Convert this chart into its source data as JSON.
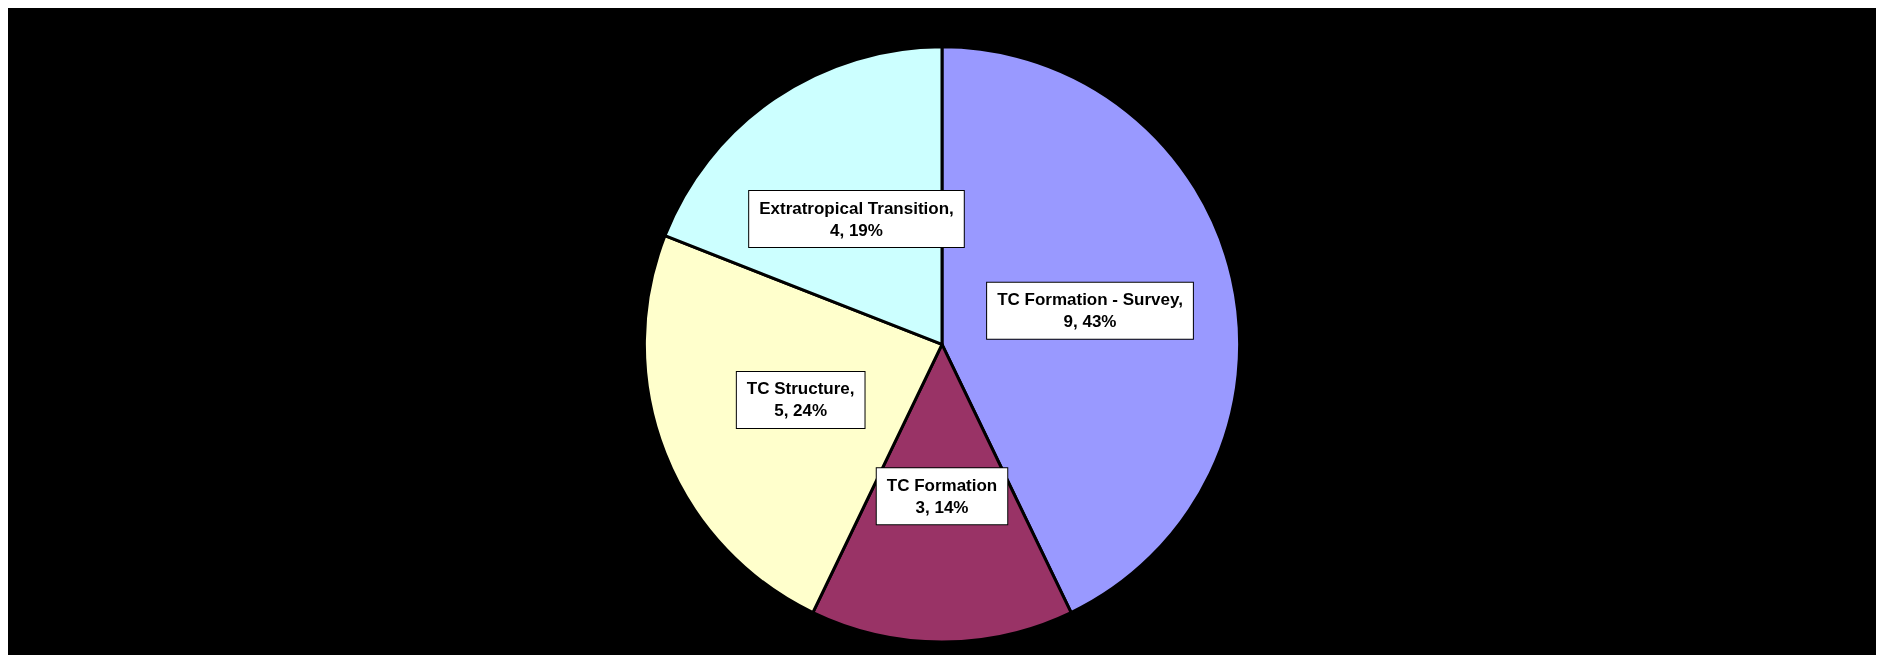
{
  "chart_data": {
    "type": "pie",
    "categories": [
      "TC Formation - Survey",
      "TC Formation",
      "TC Structure",
      "Extratropical Transition"
    ],
    "values": [
      9,
      3,
      5,
      4
    ],
    "colors": [
      "#9999ff",
      "#993366",
      "#ffffcc",
      "#ccffff"
    ],
    "value_labels": [
      ",\n9, 43%",
      "\n3, 14%",
      ",\n5, 24%",
      ",\n4, 19%"
    ]
  }
}
